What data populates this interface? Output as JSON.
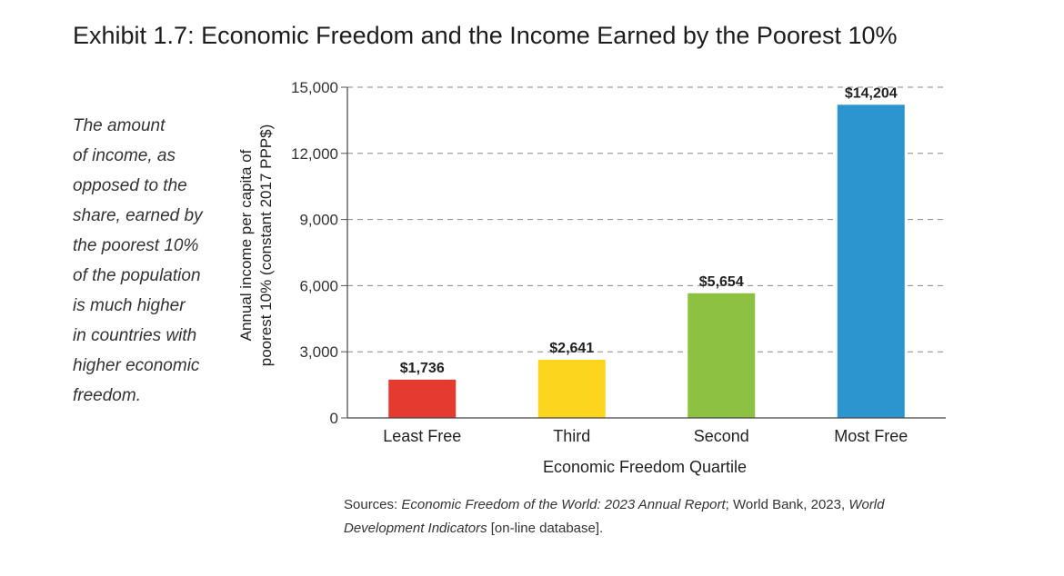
{
  "title": "Exhibit 1.7: Economic Freedom and the Income Earned by the Poorest 10%",
  "sidebar_lines": [
    "The amount",
    "of income, as",
    "opposed to the",
    "share, earned by",
    "the poorest 10%",
    "of the population",
    "is much higher",
    "in countries with",
    "higher economic",
    "freedom."
  ],
  "sources": {
    "label": "Sources: ",
    "report": "Economic Freedom of the World: 2023 Annual Report",
    "sep1": "; World Bank, 2023, ",
    "database": "World Development Indicators",
    "tail": " [on-line database]."
  },
  "chart_data": {
    "type": "bar",
    "categories": [
      "Least Free",
      "Third",
      "Second",
      "Most Free"
    ],
    "values": [
      1736,
      2641,
      5654,
      14204
    ],
    "value_labels": [
      "$1,736",
      "$2,641",
      "$5,654",
      "$14,204"
    ],
    "colors": [
      "#e53a2f",
      "#fcd51f",
      "#8dc141",
      "#2c95cf"
    ],
    "xlabel": "Economic Freedom Quartile",
    "ylabel_lines": [
      "Annual income per capita of",
      "poorest 10% (constant 2017 PPP$)"
    ],
    "ylim": [
      0,
      15000
    ],
    "yticks": [
      0,
      3000,
      6000,
      9000,
      12000,
      15000
    ],
    "ytick_labels": [
      "0",
      "3,000",
      "6,000",
      "9,000",
      "12,000",
      "15,000"
    ],
    "grid": "dashed-horizontal"
  }
}
